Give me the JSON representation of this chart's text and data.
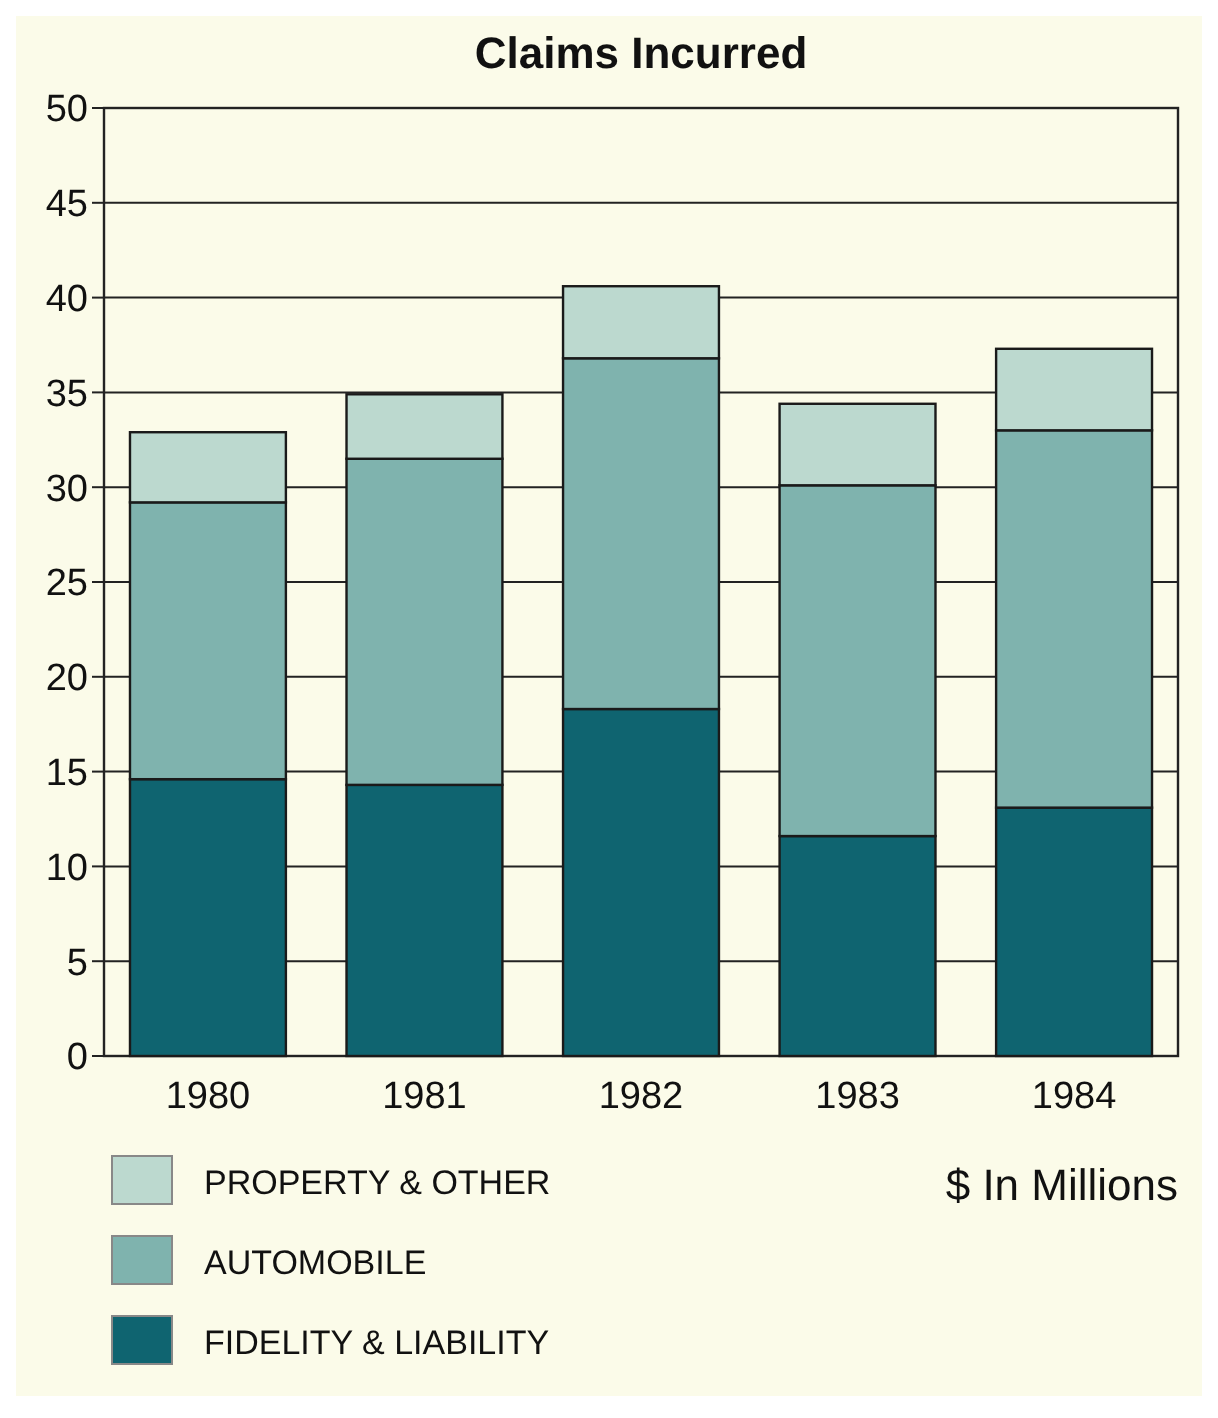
{
  "chart_data": {
    "type": "bar",
    "title": "Claims Incurred",
    "stacked": true,
    "categories": [
      "1980",
      "1981",
      "1982",
      "1983",
      "1984"
    ],
    "series": [
      {
        "name": "FIDELITY & LIABILITY",
        "color": "#0f6470",
        "values": [
          14.6,
          14.3,
          18.3,
          11.6,
          13.1
        ]
      },
      {
        "name": "AUTOMOBILE",
        "color": "#7fb3ae",
        "values": [
          14.6,
          17.2,
          18.5,
          18.5,
          19.9
        ]
      },
      {
        "name": "PROPERTY & OTHER",
        "color": "#bcd9cf",
        "values": [
          3.7,
          3.4,
          3.8,
          4.3,
          4.3
        ]
      }
    ],
    "ylim": [
      0,
      50
    ],
    "yticks": [
      0,
      5,
      10,
      15,
      20,
      25,
      30,
      35,
      40,
      45,
      50
    ],
    "grid": "y",
    "legend": "bottom",
    "annotations": [
      "$ In Millions"
    ]
  }
}
